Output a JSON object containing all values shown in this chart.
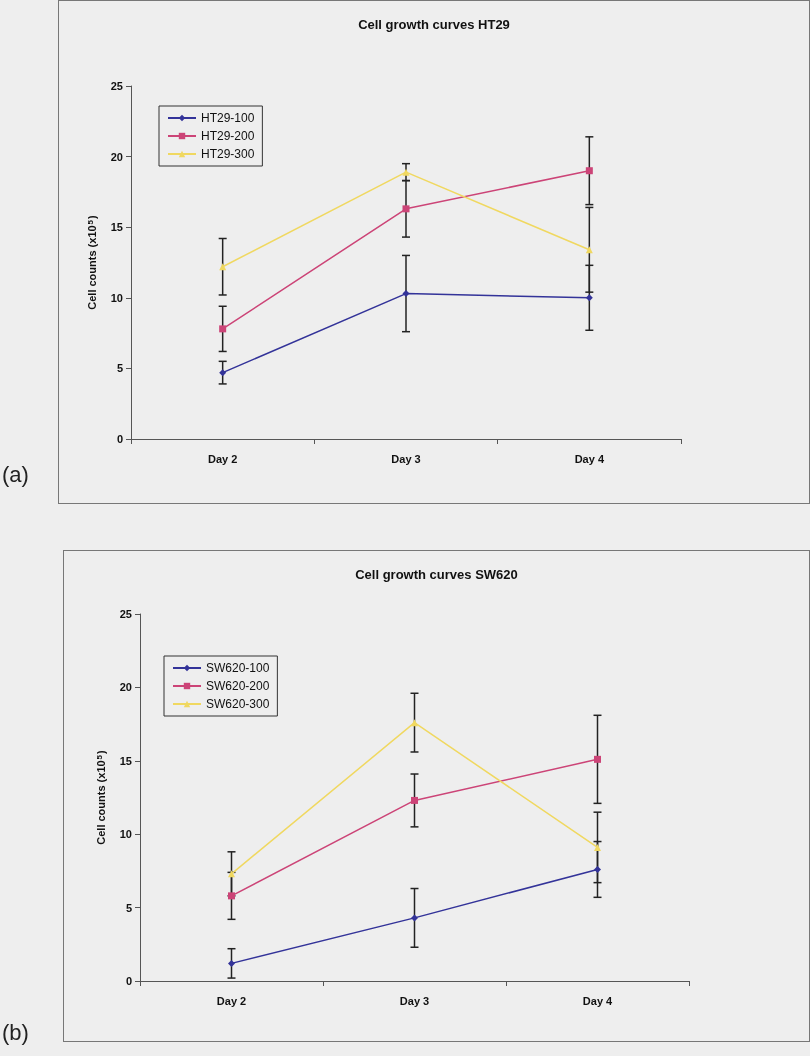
{
  "chart_data": [
    {
      "type": "line",
      "title": "Cell growth curves HT29",
      "ylabel": "Cell counts (x10$^{5}$)",
      "annotations": [
        "(a)"
      ],
      "categories": [
        "Day 2",
        "Day 3",
        "Day 4"
      ],
      "ylim": [
        0,
        25
      ],
      "yticks": [
        0,
        5,
        10,
        15,
        20,
        25
      ],
      "grid": false,
      "legend": "top left",
      "series": [
        {
          "name": "HT29-100",
          "color": "#333399",
          "marker": "diamond",
          "values": [
            4.7,
            10.3,
            10.0
          ],
          "errors": [
            0.8,
            2.7,
            2.3
          ]
        },
        {
          "name": "HT29-200",
          "color": "#cc4477",
          "marker": "square",
          "values": [
            7.8,
            16.3,
            19.0
          ],
          "errors": [
            1.6,
            2.0,
            2.4
          ]
        },
        {
          "name": "HT29-300",
          "color": "#f0d860",
          "marker": "triangle",
          "values": [
            12.2,
            18.9,
            13.4
          ],
          "errors": [
            2.0,
            0.6,
            3.0
          ]
        }
      ]
    },
    {
      "type": "line",
      "title": "Cell growth curves SW620",
      "ylabel": "Cell counts (x10$^{5}$)",
      "annotations": [
        "(b)"
      ],
      "categories": [
        "Day 2",
        "Day 3",
        "Day 4"
      ],
      "ylim": [
        0,
        25
      ],
      "yticks": [
        0,
        5,
        10,
        15,
        20,
        25
      ],
      "grid": false,
      "legend": "top left",
      "series": [
        {
          "name": "SW620-100",
          "color": "#333399",
          "marker": "diamond",
          "values": [
            1.2,
            4.3,
            7.6
          ],
          "errors": [
            1.0,
            2.0,
            1.9
          ]
        },
        {
          "name": "SW620-200",
          "color": "#cc4477",
          "marker": "square",
          "values": [
            5.8,
            12.3,
            15.1
          ],
          "errors": [
            1.6,
            1.8,
            3.0
          ]
        },
        {
          "name": "SW620-300",
          "color": "#f0d860",
          "marker": "triangle",
          "values": [
            7.3,
            17.6,
            9.1
          ],
          "errors": [
            1.5,
            2.0,
            2.4
          ]
        }
      ]
    }
  ]
}
